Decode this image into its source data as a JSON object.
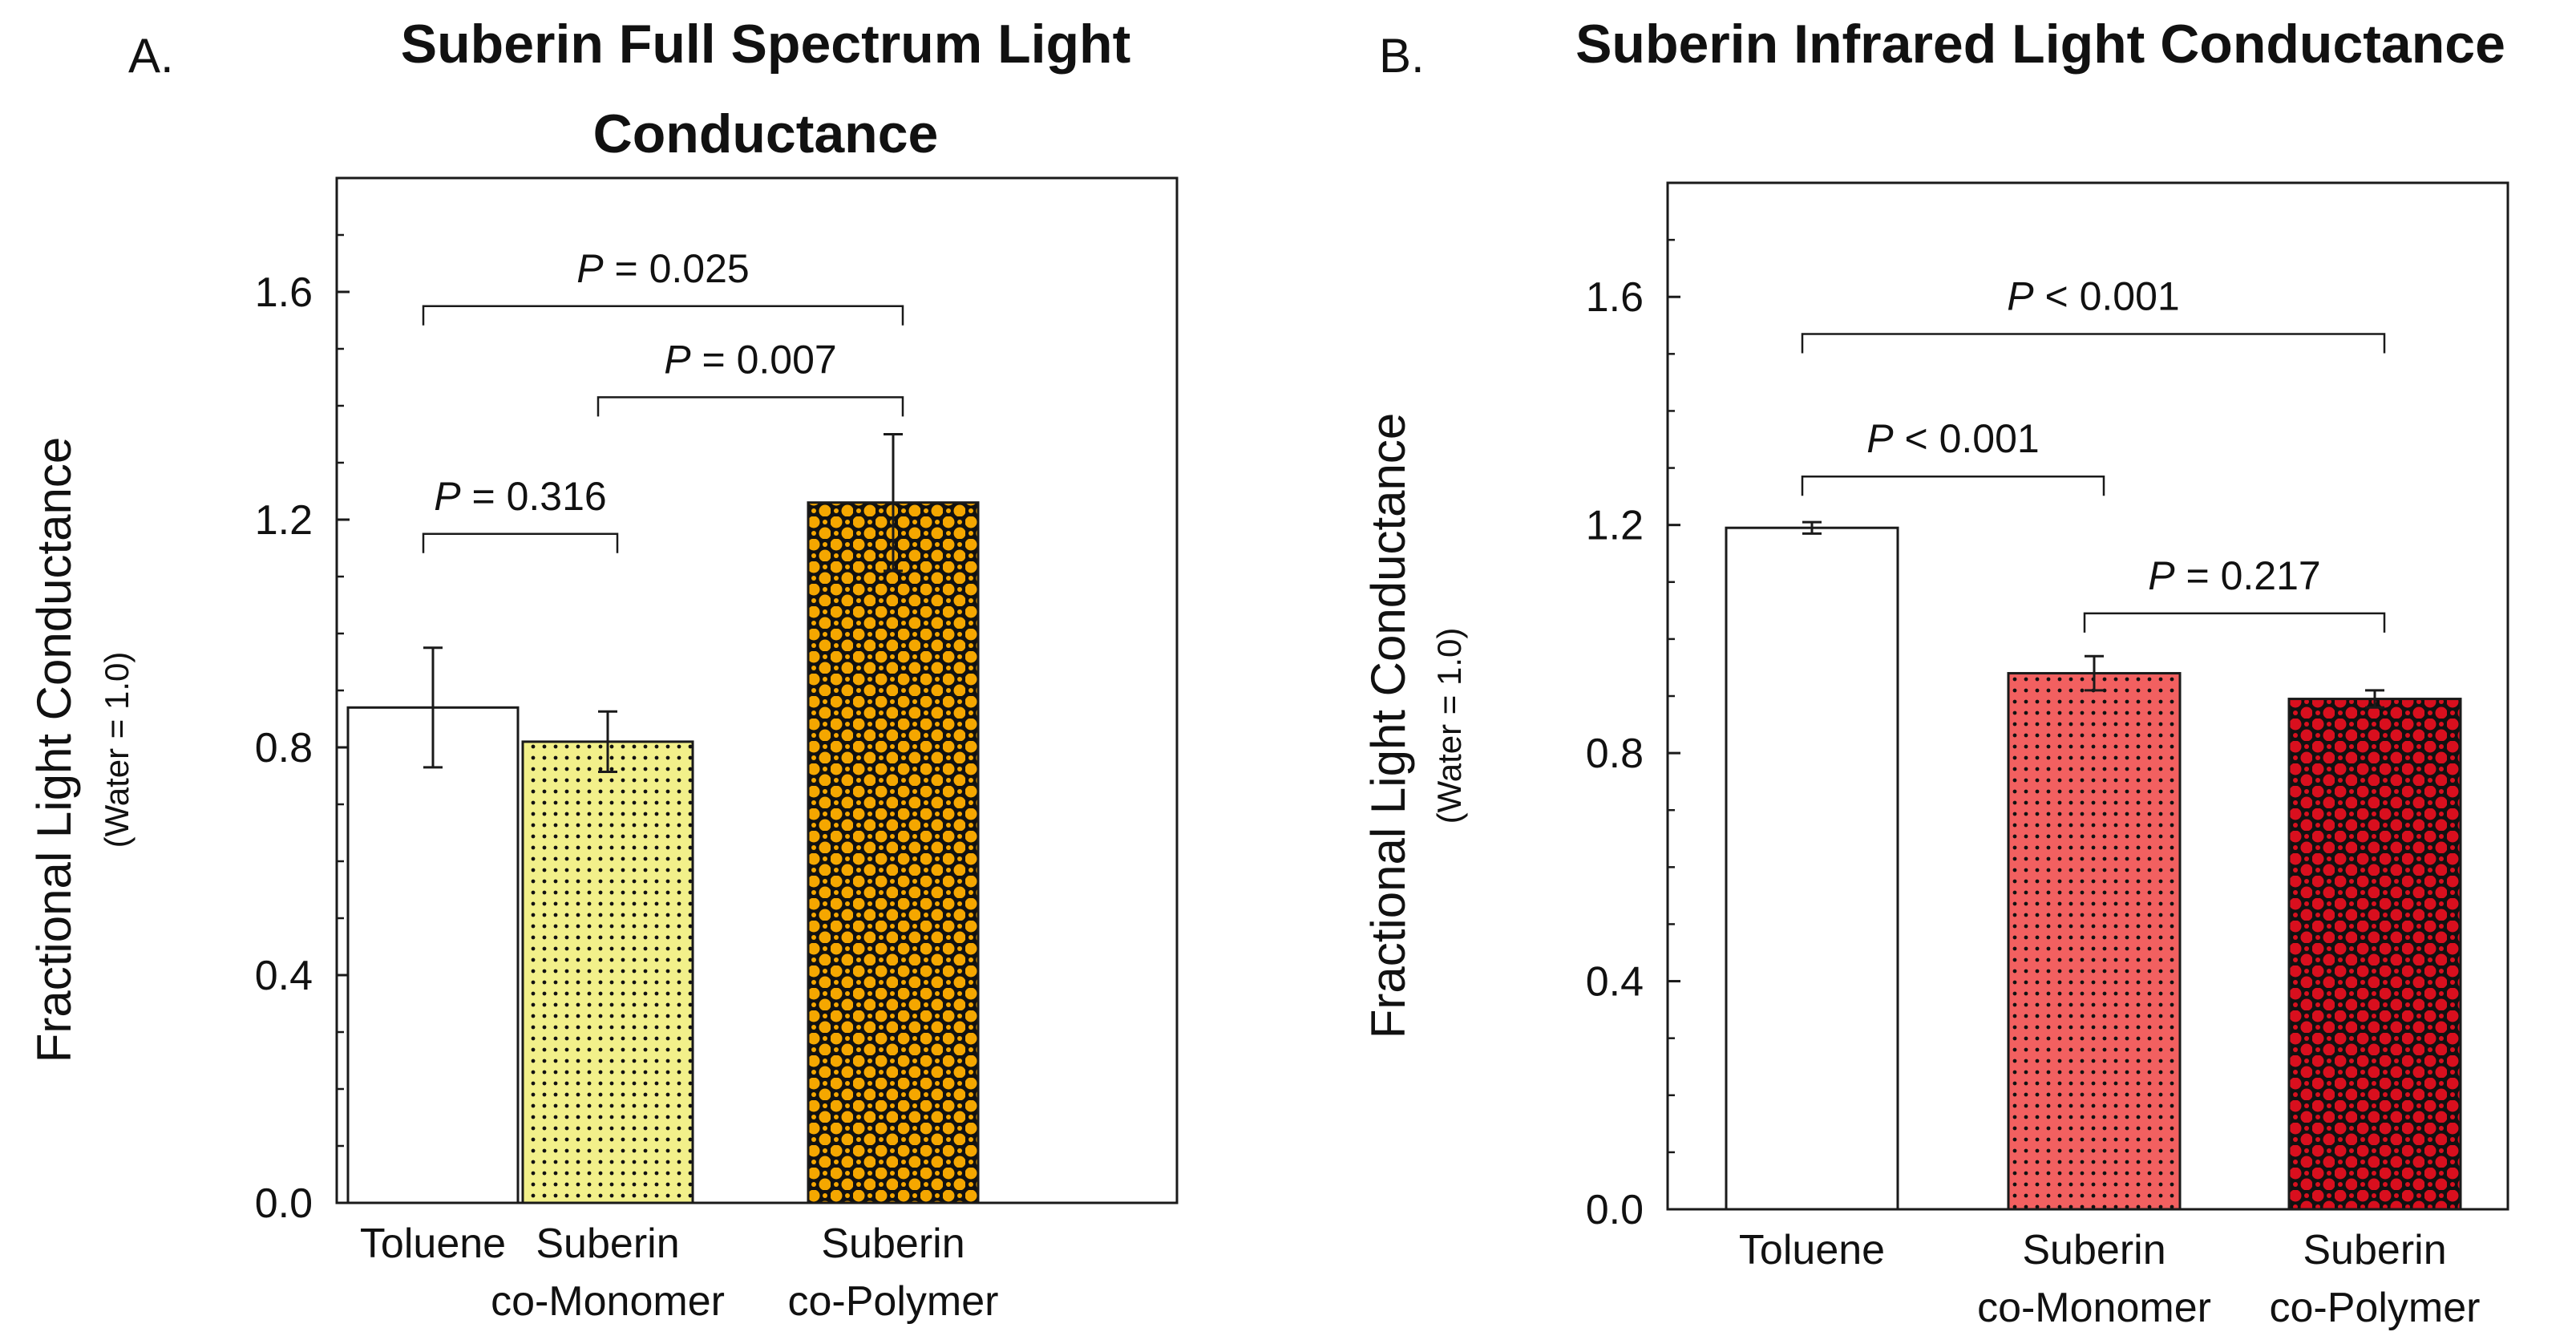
{
  "colors": {
    "axis": "#1a1a1a",
    "toluene_fill": "#ffffff",
    "yellow_fill": "#f2f08a",
    "orange_fill": "#f5a700",
    "red_light_fill": "#f26060",
    "red_dark_fill": "#d90f1e",
    "dot_color": "#111111"
  },
  "chart_data": [
    {
      "type": "bar",
      "panel_letter": "A.",
      "title_lines": [
        "Suberin Full Spectrum Light",
        "Conductance"
      ],
      "ylabel": "Fractional Light Conductance",
      "ylabel_sub": "(Water = 1.0)",
      "xlabel": "",
      "ylim": [
        0,
        1.8
      ],
      "yticks": [
        0.0,
        0.4,
        0.8,
        1.2,
        1.6
      ],
      "ytick_labels": [
        "0.0",
        "0.4",
        "0.8",
        "1.2",
        "1.6"
      ],
      "categories": [
        {
          "line1": "Toluene",
          "line2": ""
        },
        {
          "line1": "Suberin",
          "line2": "co-Monomer"
        },
        {
          "line1": "Suberin",
          "line2": "co-Polymer"
        }
      ],
      "values": [
        0.87,
        0.81,
        1.23
      ],
      "errors": [
        0.105,
        0.053,
        0.12
      ],
      "bar_fill_keys": [
        "toluene_fill",
        "yellow_fill",
        "orange_fill"
      ],
      "bar_patterns": [
        "none",
        "dots",
        "circles"
      ],
      "significance": [
        {
          "from": 0,
          "to": 2,
          "y": 1.575,
          "p_symbol": "P",
          "p_text": " = 0.025"
        },
        {
          "from": 1,
          "to": 2,
          "y": 1.415,
          "p_symbol": "P",
          "p_text": " = 0.007"
        },
        {
          "from": 0,
          "to": 1,
          "y": 1.175,
          "p_symbol": "P",
          "p_text": " = 0.316"
        }
      ]
    },
    {
      "type": "bar",
      "panel_letter": "B.",
      "title_lines": [
        "Suberin Infrared Light Conductance"
      ],
      "ylabel": "Fractional Light Conductance",
      "ylabel_sub": "(Water = 1.0)",
      "xlabel": "",
      "ylim": [
        0,
        1.8
      ],
      "yticks": [
        0.0,
        0.4,
        0.8,
        1.2,
        1.6
      ],
      "ytick_labels": [
        "0.0",
        "0.4",
        "0.8",
        "1.2",
        "1.6"
      ],
      "categories": [
        {
          "line1": "Toluene",
          "line2": ""
        },
        {
          "line1": "Suberin",
          "line2": "co-Monomer"
        },
        {
          "line1": "Suberin",
          "line2": "co-Polymer"
        }
      ],
      "values": [
        1.195,
        0.94,
        0.895
      ],
      "errors": [
        0.01,
        0.03,
        0.015
      ],
      "bar_fill_keys": [
        "toluene_fill",
        "red_light_fill",
        "red_dark_fill"
      ],
      "bar_patterns": [
        "none",
        "dots",
        "circles"
      ],
      "significance": [
        {
          "from": 0,
          "to": 2,
          "y": 1.535,
          "p_symbol": "P",
          "p_text": " < 0.001"
        },
        {
          "from": 0,
          "to": 1,
          "y": 1.285,
          "p_symbol": "P",
          "p_text": " < 0.001"
        },
        {
          "from": 1,
          "to": 2,
          "y": 1.045,
          "p_symbol": "P",
          "p_text": " = 0.217"
        }
      ]
    }
  ]
}
